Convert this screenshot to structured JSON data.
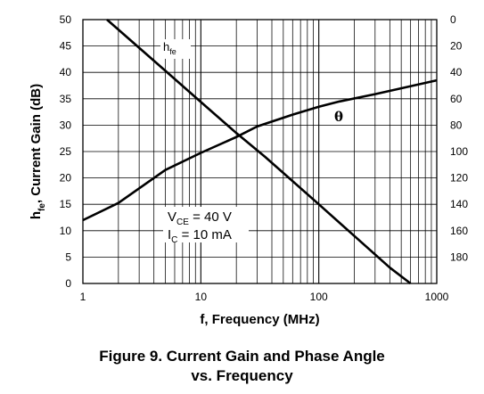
{
  "chart_data": {
    "type": "line",
    "xlabel": "f, Frequency (MHz)",
    "ylabel_left": {
      "main": "h",
      "sub": "fe",
      "rest": ", Current Gain (dB)"
    },
    "x_scale": "log",
    "xlim": [
      1,
      1000
    ],
    "x_ticks": [
      1,
      10,
      100,
      1000
    ],
    "x_tick_labels": [
      "1",
      "10",
      "100",
      "1000"
    ],
    "ylim_left": [
      0,
      50
    ],
    "y_ticks_left": [
      0,
      5,
      10,
      15,
      20,
      25,
      30,
      35,
      40,
      45,
      50
    ],
    "y_tick_labels_left": [
      "0",
      "5",
      "10",
      "15",
      "20",
      "25",
      "30",
      "35",
      "40",
      "45",
      "50"
    ],
    "ylim_right": [
      0,
      200
    ],
    "right_axis_inverted": true,
    "y_ticks_right": [
      0,
      20,
      40,
      60,
      80,
      100,
      120,
      140,
      160,
      180
    ],
    "y_tick_labels_right": [
      "0",
      "20",
      "40",
      "60",
      "80",
      "100",
      "120",
      "140",
      "160",
      "180"
    ],
    "grid": true,
    "series": [
      {
        "name": "hfe",
        "label_main": "h",
        "label_sub": "fe",
        "axis": "left",
        "x": [
          1.6,
          5,
          10,
          20,
          35,
          100,
          200,
          400,
          600
        ],
        "y": [
          50,
          40.3,
          34.4,
          28.5,
          24,
          15,
          9,
          3,
          0
        ]
      },
      {
        "name": "θ",
        "axis": "right",
        "x": [
          1,
          2,
          5,
          10,
          20,
          30,
          60,
          100,
          150,
          300,
          1000
        ],
        "y": [
          152,
          139,
          114,
          101,
          89,
          81,
          72,
          66,
          62,
          56.5,
          46
        ]
      }
    ],
    "annotations": [
      {
        "main": "V",
        "sub": "CE",
        "rest": " = 40 V"
      },
      {
        "main": "I",
        "sub": "C",
        "rest": " = 10 mA"
      }
    ]
  },
  "caption": {
    "line1": "Figure 9. Current Gain and Phase Angle",
    "line2": "vs. Frequency"
  }
}
